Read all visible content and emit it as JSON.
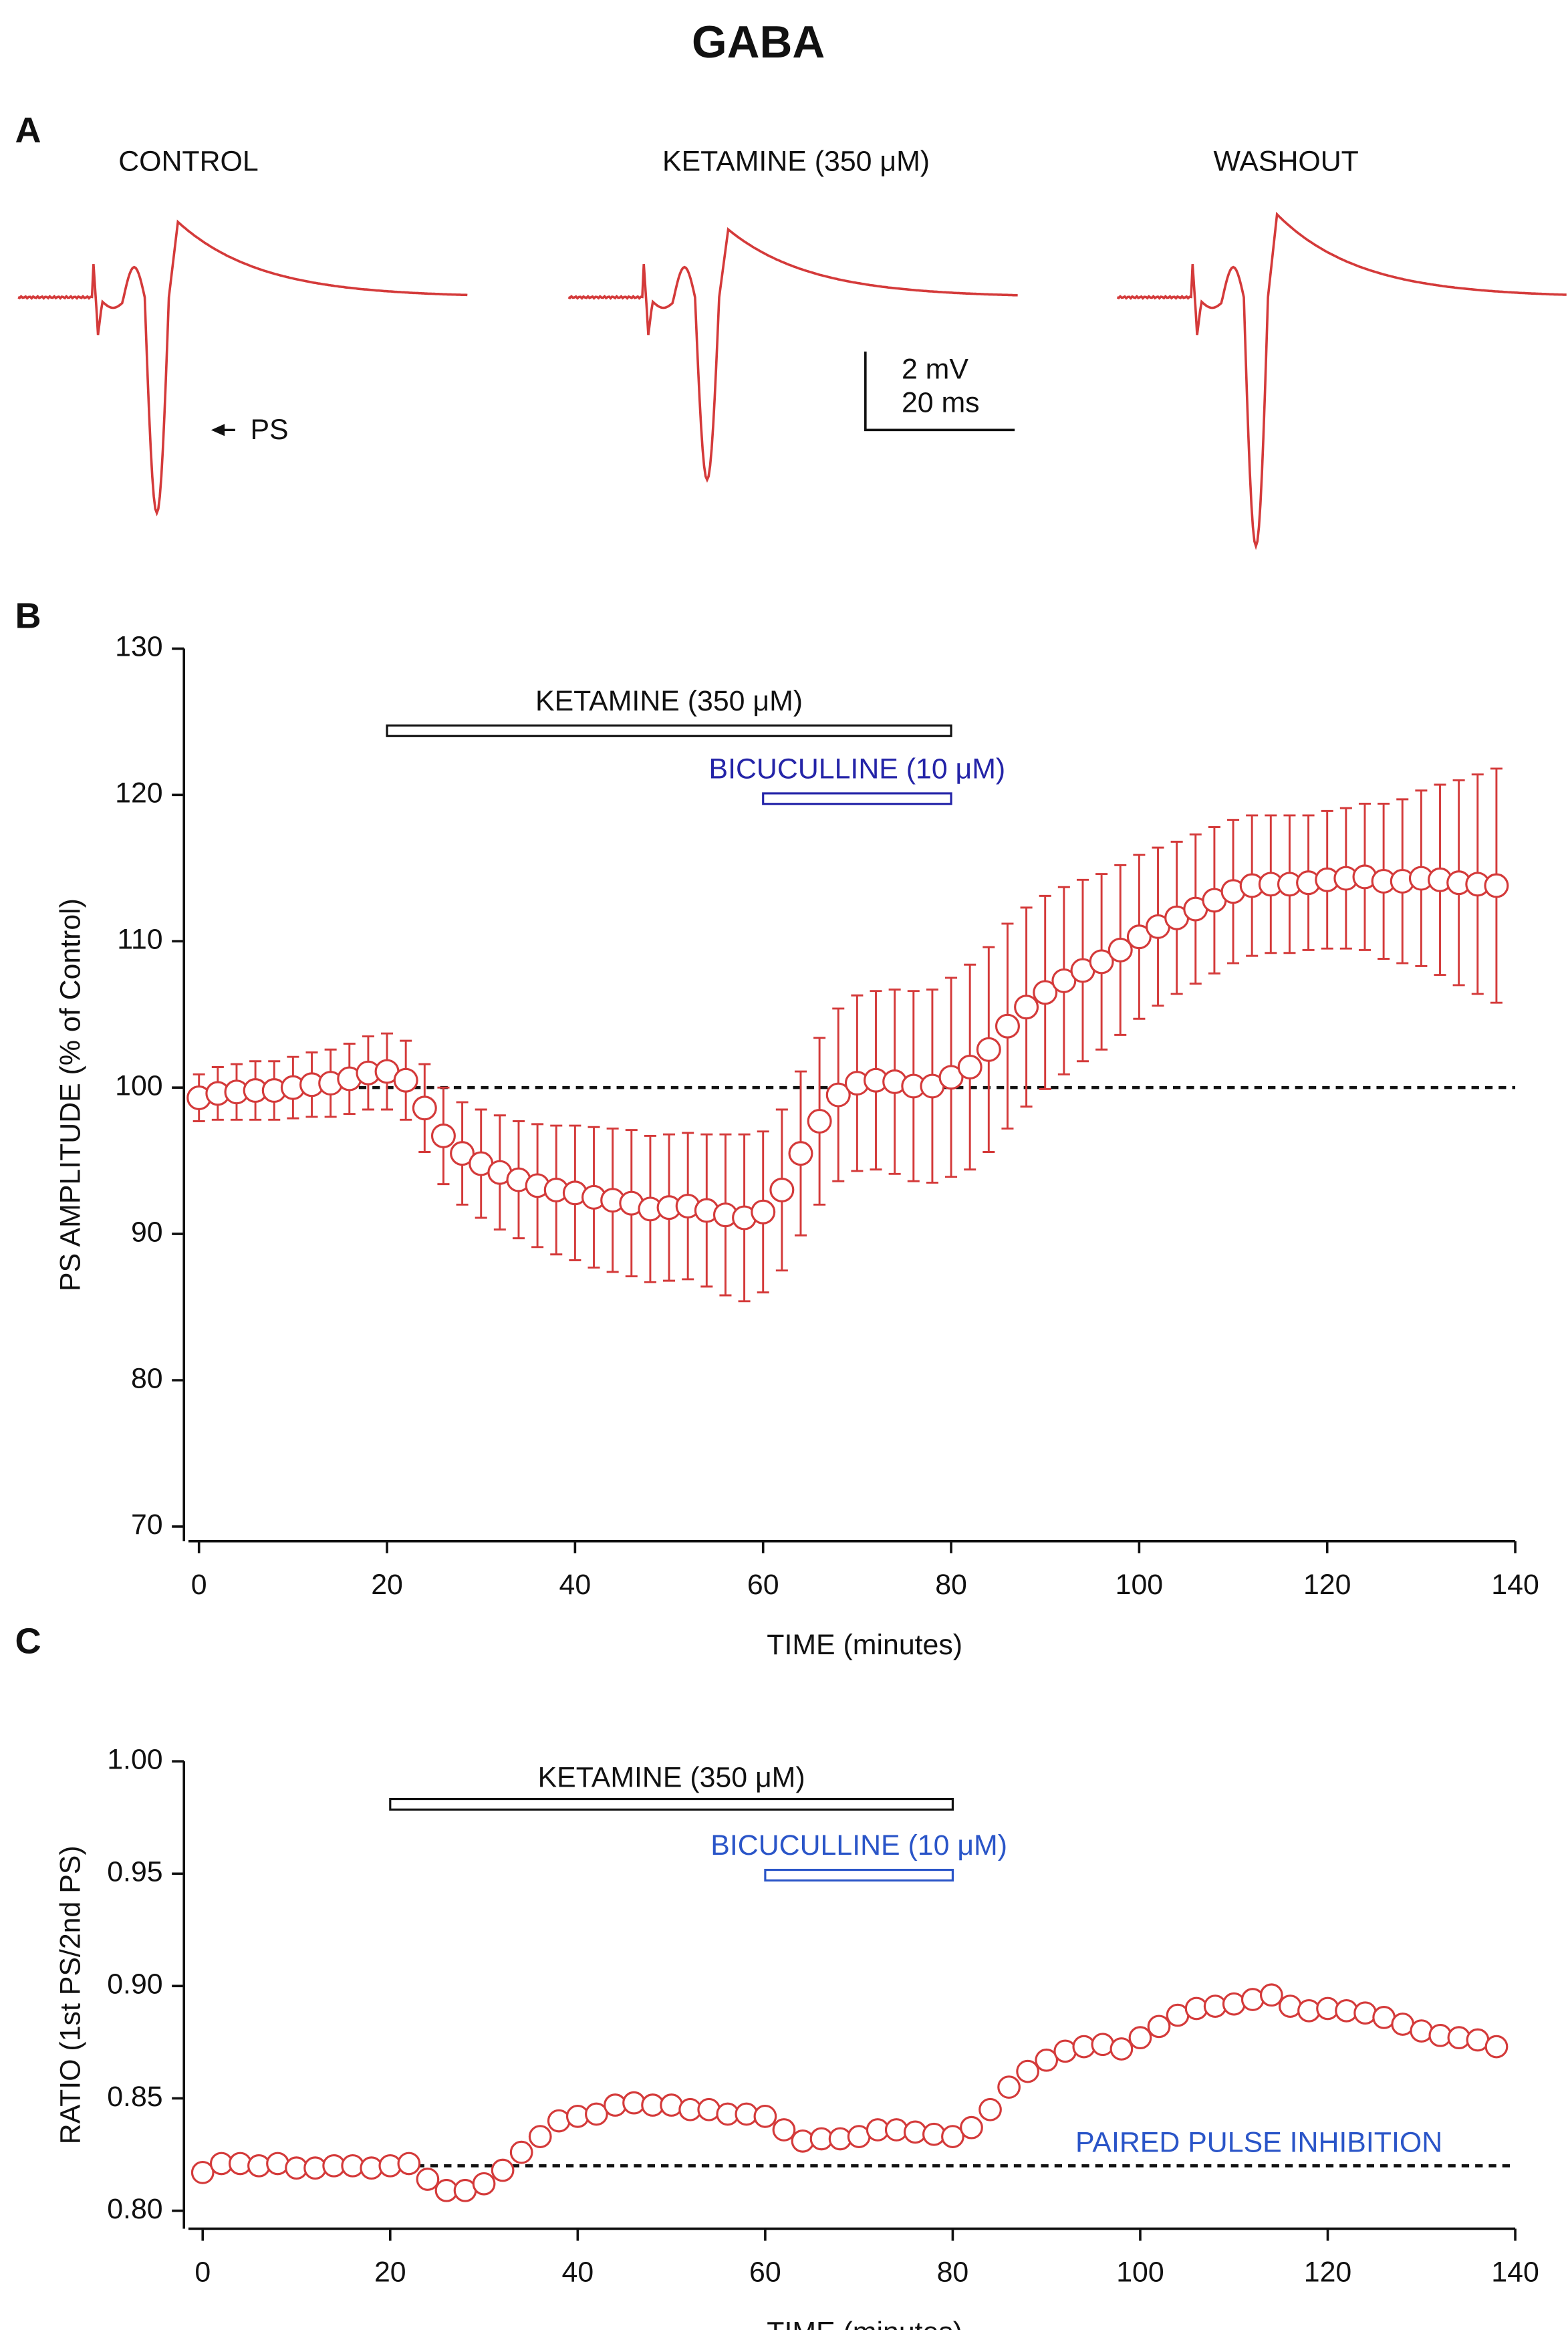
{
  "title": "GABA",
  "panel_a": {
    "label": "A",
    "traces": [
      "CONTROL",
      "KETAMINE (350 μM)",
      "WASHOUT"
    ],
    "ps_label": "PS",
    "scale_bar": [
      "2 mV",
      "20 ms"
    ]
  },
  "chart_data": [
    {
      "type": "scatter",
      "panel_label": "B",
      "x_label": "TIME (minutes)",
      "y_label": "PS AMPLITUDE (% of Control)",
      "x": [
        0,
        2,
        4,
        6,
        8,
        10,
        12,
        14,
        16,
        18,
        20,
        22,
        24,
        26,
        28,
        30,
        32,
        34,
        36,
        38,
        40,
        42,
        44,
        46,
        48,
        50,
        52,
        54,
        56,
        58,
        60,
        62,
        64,
        66,
        68,
        70,
        72,
        74,
        76,
        78,
        80,
        82,
        84,
        86,
        88,
        90,
        92,
        94,
        96,
        98,
        100,
        102,
        104,
        106,
        108,
        110,
        112,
        114,
        116,
        118,
        120,
        122,
        124,
        126,
        128,
        130,
        132,
        134,
        136,
        138
      ],
      "values": [
        99.3,
        99.6,
        99.7,
        99.8,
        99.8,
        100,
        100.2,
        100.3,
        100.6,
        101,
        101.1,
        100.5,
        98.6,
        96.7,
        95.5,
        94.8,
        94.2,
        93.7,
        93.3,
        93,
        92.8,
        92.5,
        92.3,
        92.1,
        91.7,
        91.8,
        91.9,
        91.6,
        91.3,
        91.1,
        91.5,
        93,
        95.5,
        97.7,
        99.5,
        100.3,
        100.5,
        100.4,
        100.1,
        100.1,
        100.7,
        101.4,
        102.6,
        104.2,
        105.5,
        106.5,
        107.3,
        108,
        108.6,
        109.4,
        110.3,
        111,
        111.6,
        112.2,
        112.8,
        113.4,
        113.8,
        113.9,
        113.9,
        114,
        114.2,
        114.3,
        114.4,
        114.1,
        114.1,
        114.3,
        114.2,
        114,
        113.9,
        113.8
      ],
      "errors": [
        1.6,
        1.8,
        1.9,
        2,
        2,
        2.1,
        2.2,
        2.3,
        2.4,
        2.5,
        2.6,
        2.7,
        3,
        3.3,
        3.5,
        3.7,
        3.9,
        4,
        4.2,
        4.4,
        4.6,
        4.8,
        4.9,
        5,
        5,
        5,
        5,
        5.2,
        5.5,
        5.7,
        5.5,
        5.5,
        5.6,
        5.7,
        5.9,
        6,
        6.1,
        6.3,
        6.5,
        6.6,
        6.8,
        7,
        7,
        7,
        6.8,
        6.6,
        6.4,
        6.2,
        6,
        5.8,
        5.6,
        5.4,
        5.2,
        5.1,
        5,
        4.9,
        4.8,
        4.7,
        4.7,
        4.6,
        4.7,
        4.8,
        5,
        5.3,
        5.6,
        6,
        6.5,
        7,
        7.5,
        8
      ],
      "color": "#d43a3a",
      "xlim": [
        -1.6,
        140
      ],
      "xticks": [
        0,
        20,
        40,
        60,
        80,
        100,
        120,
        140
      ],
      "ylim": [
        69,
        130
      ],
      "yticks": [
        70,
        80,
        90,
        100,
        110,
        120,
        130
      ],
      "hline": 100,
      "bars": [
        {
          "text": "KETAMINE (350 μM)",
          "x": [
            20,
            80
          ],
          "color": "#111111"
        },
        {
          "text": "BICUCULLINE (10 μM)",
          "x": [
            60,
            80
          ],
          "color": "#2424a8"
        }
      ]
    },
    {
      "type": "scatter",
      "panel_label": "C",
      "x_label": "TIME (minutes)",
      "y_label": "RATIO (1st PS/2nd PS)",
      "x": [
        0,
        2,
        4,
        6,
        8,
        10,
        12,
        14,
        16,
        18,
        20,
        22,
        24,
        26,
        28,
        30,
        32,
        34,
        36,
        38,
        40,
        42,
        44,
        46,
        48,
        50,
        52,
        54,
        56,
        58,
        60,
        62,
        64,
        66,
        68,
        70,
        72,
        74,
        76,
        78,
        80,
        82,
        84,
        86,
        88,
        90,
        92,
        94,
        96,
        98,
        100,
        102,
        104,
        106,
        108,
        110,
        112,
        114,
        116,
        118,
        120,
        122,
        124,
        126,
        128,
        130,
        132,
        134,
        136,
        138
      ],
      "values": [
        0.817,
        0.821,
        0.821,
        0.82,
        0.821,
        0.819,
        0.819,
        0.82,
        0.82,
        0.819,
        0.82,
        0.821,
        0.814,
        0.809,
        0.809,
        0.812,
        0.818,
        0.826,
        0.833,
        0.84,
        0.842,
        0.843,
        0.847,
        0.848,
        0.847,
        0.847,
        0.845,
        0.845,
        0.843,
        0.843,
        0.842,
        0.836,
        0.831,
        0.832,
        0.832,
        0.833,
        0.836,
        0.836,
        0.835,
        0.834,
        0.833,
        0.837,
        0.845,
        0.855,
        0.862,
        0.867,
        0.871,
        0.873,
        0.874,
        0.872,
        0.877,
        0.882,
        0.887,
        0.89,
        0.891,
        0.892,
        0.894,
        0.896,
        0.891,
        0.889,
        0.89,
        0.889,
        0.888,
        0.886,
        0.883,
        0.88,
        0.878,
        0.877,
        0.876,
        0.873
      ],
      "color": "#d43a3a",
      "xlim": [
        -2,
        140
      ],
      "xticks": [
        0,
        20,
        40,
        60,
        80,
        100,
        120,
        140
      ],
      "ylim": [
        0.792,
        1.0
      ],
      "yticks": [
        {
          "value": 0.8,
          "label": "0.80"
        },
        0.85,
        {
          "value": 0.9,
          "label": "0.90"
        },
        0.95,
        {
          "value": 1.0,
          "label": "1.00"
        }
      ],
      "hline": 0.82,
      "hline_label": "PAIRED PULSE INHIBITION",
      "hline_label_color": "#2a55c8",
      "bars": [
        {
          "text": "KETAMINE (350 μM)",
          "x": [
            20,
            80
          ],
          "color": "#111111"
        },
        {
          "text": "BICUCULLINE (10 μM)",
          "x": [
            60,
            80
          ],
          "color": "#2a55c8"
        }
      ]
    }
  ]
}
